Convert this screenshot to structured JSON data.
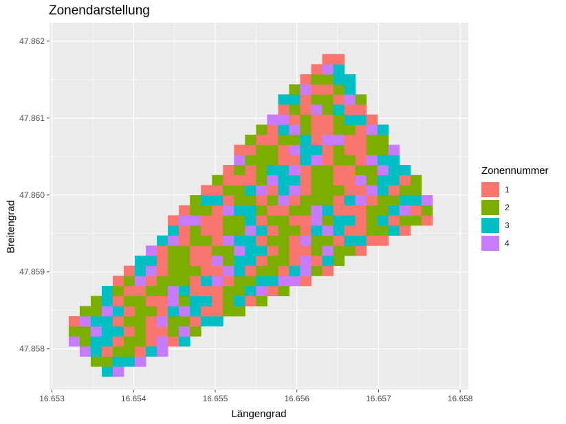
{
  "chart_data": {
    "type": "heatmap",
    "title": "Zonendarstellung",
    "xlabel": "Längengrad",
    "ylabel": "Breitengrad",
    "xlim": [
      16.65297,
      16.6581
    ],
    "ylim": [
      47.85747,
      47.86224
    ],
    "x_ticks": [
      "16.653",
      "16.654",
      "16.655",
      "16.656",
      "16.657",
      "16.658"
    ],
    "x_tick_values": [
      16.653,
      16.654,
      16.655,
      16.656,
      16.657,
      16.658
    ],
    "y_ticks": [
      "47.858",
      "47.859",
      "47.860",
      "47.861",
      "47.862"
    ],
    "y_tick_values": [
      47.858,
      47.859,
      47.86,
      47.861,
      47.862
    ],
    "grid": true,
    "legend_position": "right",
    "legend_title": "Zonennummer",
    "zones": [
      {
        "label": "1",
        "color": "#F8766D"
      },
      {
        "label": "2",
        "color": "#7CAE00"
      },
      {
        "label": "3",
        "color": "#00BFC4"
      },
      {
        "label": "4",
        "color": "#C77CFF"
      }
    ],
    "cell_width_deg": 0.000135,
    "cell_height_deg": 0.000131,
    "x0": 16.65307,
    "y0": 47.85764,
    "shape": {
      "lower_left_corner": [
        16.65307,
        47.85815
      ],
      "bottom_corner": [
        16.65375,
        47.85764
      ],
      "right_corner": [
        16.65775,
        47.85973
      ],
      "top_corner": [
        16.65642,
        47.86193
      ],
      "upper_left_edge": [
        16.65475,
        47.85997
      ]
    },
    "zone_pattern_rows": [
      "1122341224133211213421122143321122431",
      "2213412233441121232144121123312212412",
      "3412221143122134211422311214231122341",
      "1243312211423312214132211243312214211",
      "4121233412211224331211242213312241123",
      "2331142221134122143312214221331124212",
      "1214323311221433121122431221343112231",
      "3122141123342112231441122312211423312"
    ]
  }
}
